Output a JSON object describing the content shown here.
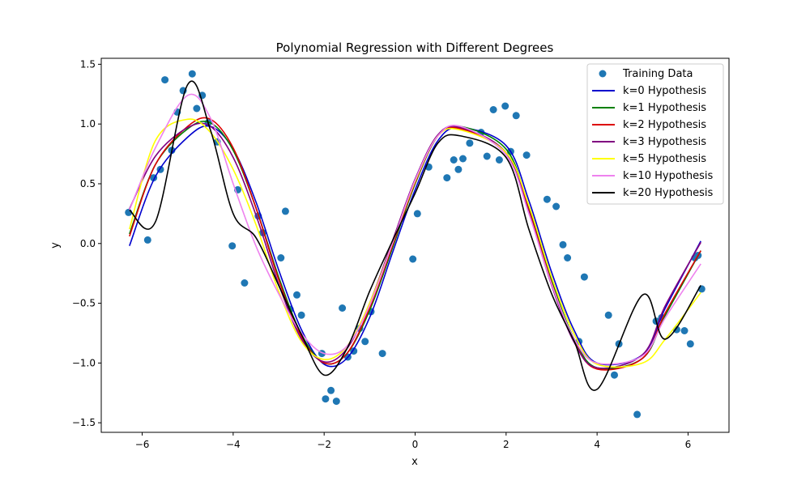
{
  "chart_data": {
    "type": "line",
    "title": "Polynomial Regression with Different Degrees",
    "xlabel": "x",
    "ylabel": "y",
    "xlim": [
      -6.9,
      6.9
    ],
    "ylim": [
      -1.58,
      1.55
    ],
    "xticks": [
      -6,
      -4,
      -2,
      0,
      2,
      4,
      6
    ],
    "yticks": [
      -1.5,
      -1.0,
      -0.5,
      0.0,
      0.5,
      1.0,
      1.5
    ],
    "xtick_labels": [
      "−6",
      "−4",
      "−2",
      "0",
      "2",
      "4",
      "6"
    ],
    "ytick_labels": [
      "−1.5",
      "−1.0",
      "−0.5",
      "0.0",
      "0.5",
      "1.0",
      "1.5"
    ],
    "grid": false,
    "legend_position": "top-right",
    "scatter": {
      "name": "Training Data",
      "color": "#1f77b4",
      "points": [
        [
          -6.3,
          0.26
        ],
        [
          -5.88,
          0.03
        ],
        [
          -5.75,
          0.55
        ],
        [
          -5.6,
          0.62
        ],
        [
          -5.5,
          1.37
        ],
        [
          -5.35,
          0.78
        ],
        [
          -5.23,
          1.1
        ],
        [
          -5.1,
          1.28
        ],
        [
          -4.9,
          1.42
        ],
        [
          -4.8,
          1.13
        ],
        [
          -4.68,
          1.24
        ],
        [
          -4.55,
          1.01
        ],
        [
          -4.35,
          0.85
        ],
        [
          -4.02,
          -0.02
        ],
        [
          -3.9,
          0.45
        ],
        [
          -3.75,
          -0.33
        ],
        [
          -3.45,
          0.23
        ],
        [
          -3.35,
          0.09
        ],
        [
          -2.95,
          -0.12
        ],
        [
          -2.85,
          0.27
        ],
        [
          -2.75,
          -0.55
        ],
        [
          -2.6,
          -0.43
        ],
        [
          -2.5,
          -0.6
        ],
        [
          -2.05,
          -0.92
        ],
        [
          -1.97,
          -1.3
        ],
        [
          -1.85,
          -1.23
        ],
        [
          -1.73,
          -1.32
        ],
        [
          -1.6,
          -0.54
        ],
        [
          -1.48,
          -0.95
        ],
        [
          -1.35,
          -0.9
        ],
        [
          -1.22,
          -0.71
        ],
        [
          -1.1,
          -0.82
        ],
        [
          -0.97,
          -0.57
        ],
        [
          -0.72,
          -0.92
        ],
        [
          -0.05,
          -0.13
        ],
        [
          0.05,
          0.25
        ],
        [
          0.3,
          0.64
        ],
        [
          0.7,
          0.55
        ],
        [
          0.85,
          0.7
        ],
        [
          0.95,
          0.62
        ],
        [
          1.05,
          0.71
        ],
        [
          1.2,
          0.84
        ],
        [
          1.45,
          0.93
        ],
        [
          1.58,
          0.73
        ],
        [
          1.72,
          1.12
        ],
        [
          1.85,
          0.7
        ],
        [
          1.98,
          1.15
        ],
        [
          2.1,
          0.77
        ],
        [
          2.22,
          1.07
        ],
        [
          2.45,
          0.74
        ],
        [
          2.9,
          0.37
        ],
        [
          3.1,
          0.31
        ],
        [
          3.25,
          -0.01
        ],
        [
          3.35,
          -0.12
        ],
        [
          3.6,
          -0.82
        ],
        [
          3.72,
          -0.28
        ],
        [
          4.25,
          -0.6
        ],
        [
          4.38,
          -1.1
        ],
        [
          4.48,
          -0.84
        ],
        [
          4.88,
          -1.43
        ],
        [
          5.3,
          -0.65
        ],
        [
          5.42,
          -0.62
        ],
        [
          5.75,
          -0.72
        ],
        [
          5.92,
          -0.73
        ],
        [
          6.05,
          -0.84
        ],
        [
          6.15,
          -0.12
        ],
        [
          6.22,
          -0.1
        ],
        [
          6.3,
          -0.38
        ]
      ]
    },
    "series": [
      {
        "name": "k=0 Hypothesis",
        "color": "#0000cd",
        "values": [
          -0.02,
          0.56,
          0.89,
          0.98,
          0.79,
          0.35,
          -0.22,
          -0.72,
          -1.01,
          -0.96,
          -0.62,
          -0.08,
          0.45,
          0.86,
          0.97,
          0.82,
          0.36,
          -0.24,
          -0.73,
          -1.0,
          -0.93,
          -0.54,
          0.02
        ]
      },
      {
        "name": "k=1 Hypothesis",
        "color": "#008000",
        "values": [
          0.08,
          0.66,
          0.96,
          1.01,
          0.78,
          0.3,
          -0.28,
          -0.76,
          -1.0,
          -0.92,
          -0.56,
          -0.04,
          0.5,
          0.9,
          0.98,
          0.79,
          0.3,
          -0.31,
          -0.8,
          -1.04,
          -0.96,
          -0.6,
          -0.06
        ]
      },
      {
        "name": "k=2 Hypothesis",
        "color": "#dd0000",
        "values": [
          0.06,
          0.66,
          0.98,
          1.04,
          0.8,
          0.3,
          -0.3,
          -0.78,
          -1.0,
          -0.92,
          -0.54,
          -0.02,
          0.51,
          0.9,
          0.96,
          0.76,
          0.28,
          -0.33,
          -0.82,
          -1.05,
          -0.96,
          -0.58,
          -0.06
        ]
      },
      {
        "name": "k=3 Hypothesis",
        "color": "#800080",
        "values": [
          0.29,
          0.73,
          0.97,
          0.98,
          0.72,
          0.24,
          -0.34,
          -0.8,
          -0.99,
          -0.88,
          -0.5,
          0.02,
          0.54,
          0.91,
          0.97,
          0.76,
          0.26,
          -0.35,
          -0.83,
          -1.04,
          -0.93,
          -0.52,
          0.01
        ]
      },
      {
        "name": "k=5 Hypothesis",
        "color": "#ffff00",
        "values": [
          0.12,
          0.86,
          1.04,
          0.93,
          0.62,
          0.16,
          -0.4,
          -0.82,
          -0.97,
          -0.86,
          -0.5,
          0.0,
          0.52,
          0.9,
          0.95,
          0.76,
          0.32,
          -0.28,
          -0.76,
          -1.01,
          -1.0,
          -0.8,
          -0.41
        ]
      },
      {
        "name": "k=10 Hypothesis",
        "color": "#ee82ee",
        "values": [
          0.28,
          0.8,
          1.24,
          1.05,
          0.5,
          -0.02,
          -0.42,
          -0.75,
          -0.92,
          -0.86,
          -0.52,
          0.0,
          0.53,
          0.9,
          0.98,
          0.74,
          0.25,
          -0.34,
          -0.8,
          -1.0,
          -0.94,
          -0.62,
          -0.17
        ]
      },
      {
        "name": "k=20 Hypothesis",
        "color": "#000000",
        "values": [
          0.28,
          0.18,
          1.33,
          0.95,
          0.25,
          0.05,
          -0.35,
          -0.76,
          -1.1,
          -0.88,
          -0.4,
          0.02,
          0.42,
          0.84,
          0.9,
          0.72,
          0.12,
          -0.42,
          -0.82,
          -1.22,
          -0.43,
          -0.8,
          -0.35
        ]
      }
    ],
    "x": [
      -6.28,
      -5.71,
      -5.0,
      -4.5,
      -4.0,
      -3.5,
      -3.0,
      -2.5,
      -2.0,
      -1.5,
      -1.0,
      -0.5,
      0.0,
      0.5,
      1.0,
      2.0,
      2.5,
      3.0,
      3.5,
      4.0,
      5.0,
      5.5,
      6.28
    ]
  }
}
